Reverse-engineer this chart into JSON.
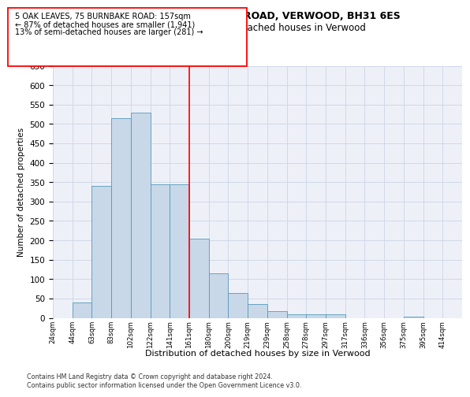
{
  "title": "5, OAK LEAVES, 75, BURNBAKE ROAD, VERWOOD, BH31 6ES",
  "subtitle": "Size of property relative to detached houses in Verwood",
  "xlabel": "Distribution of detached houses by size in Verwood",
  "ylabel": "Number of detached properties",
  "bin_labels": [
    "24sqm",
    "44sqm",
    "63sqm",
    "83sqm",
    "102sqm",
    "122sqm",
    "141sqm",
    "161sqm",
    "180sqm",
    "200sqm",
    "219sqm",
    "239sqm",
    "258sqm",
    "278sqm",
    "297sqm",
    "317sqm",
    "336sqm",
    "356sqm",
    "375sqm",
    "395sqm",
    "414sqm"
  ],
  "bar_heights": [
    0,
    40,
    340,
    515,
    530,
    345,
    345,
    205,
    115,
    65,
    35,
    18,
    10,
    10,
    10,
    0,
    0,
    0,
    3,
    0,
    0
  ],
  "bar_color": "#c8d8e8",
  "bar_edge_color": "#5599bb",
  "grid_color": "#d0d8e8",
  "background_color": "#eef0f8",
  "annotation_text_line1": "5 OAK LEAVES, 75 BURNBAKE ROAD: 157sqm",
  "annotation_text_line2": "← 87% of detached houses are smaller (1,941)",
  "annotation_text_line3": "13% of semi-detached houses are larger (281) →",
  "footnote1": "Contains HM Land Registry data © Crown copyright and database right 2024.",
  "footnote2": "Contains public sector information licensed under the Open Government Licence v3.0.",
  "ylim": [
    0,
    650
  ],
  "red_line_x": 7.0,
  "figsize": [
    6.0,
    5.0
  ],
  "dpi": 100
}
